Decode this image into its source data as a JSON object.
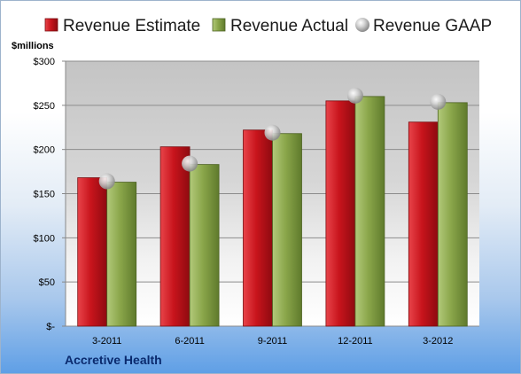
{
  "company": "Accretive Health",
  "colors": {
    "estimate": "#c8141c",
    "actual": "#8aa64a",
    "gaap": "#b8b8b8"
  },
  "chart_data": {
    "type": "bar",
    "unit_label": "$millions",
    "categories": [
      "3-2011",
      "6-2011",
      "9-2011",
      "12-2011",
      "3-2012"
    ],
    "series": [
      {
        "name": "Revenue Estimate",
        "values": [
          168,
          203,
          222,
          255,
          231
        ]
      },
      {
        "name": "Revenue Actual",
        "values": [
          163,
          183,
          218,
          260,
          253
        ]
      },
      {
        "name": "Revenue GAAP",
        "values": [
          164,
          184,
          219,
          261,
          254
        ],
        "style": "marker"
      }
    ],
    "ylim": [
      0,
      300
    ],
    "yticks": [
      {
        "value": 0,
        "label": "$-"
      },
      {
        "value": 50,
        "label": "$50"
      },
      {
        "value": 100,
        "label": "$100"
      },
      {
        "value": 150,
        "label": "$150"
      },
      {
        "value": 200,
        "label": "$200"
      },
      {
        "value": 250,
        "label": "$250"
      },
      {
        "value": 300,
        "label": "$300"
      }
    ],
    "grid": true,
    "legend_position": "top"
  }
}
